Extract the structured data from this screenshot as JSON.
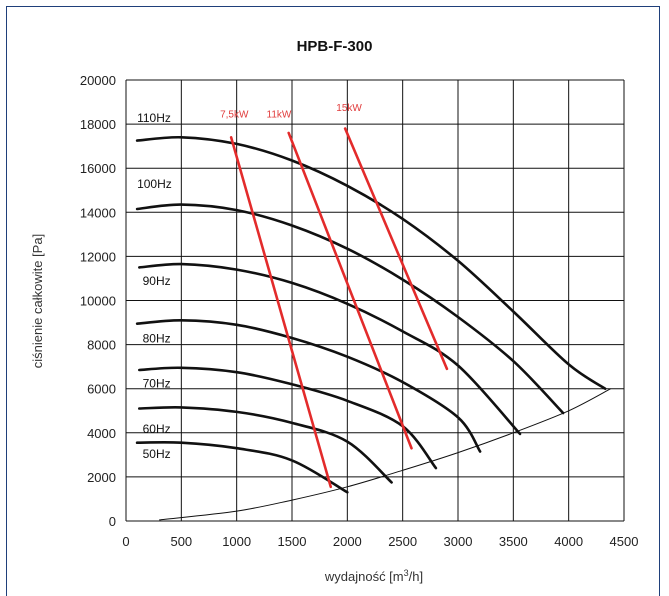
{
  "chart_data": {
    "type": "line",
    "title": "HPB-F-300",
    "xlabel_main": "wydajność [m",
    "xlabel_sup": "3",
    "xlabel_end": "/h]",
    "ylabel": "ciśnienie całkowite [Pa]",
    "xlim": [
      0,
      4500
    ],
    "ylim": [
      0,
      20000
    ],
    "x_ticks": [
      0,
      500,
      1000,
      1500,
      2000,
      2500,
      3000,
      3500,
      4000,
      4500
    ],
    "y_ticks": [
      0,
      2000,
      4000,
      6000,
      8000,
      10000,
      12000,
      14000,
      16000,
      18000,
      20000
    ],
    "grid": true,
    "colors": {
      "frequency_curves": "#111111",
      "power_lines": "#e32b2b",
      "system_curve": "#111111",
      "power_labels": "#e03c3c"
    },
    "frequency_curves": [
      {
        "label": "110Hz",
        "label_pos": [
          100,
          18100
        ],
        "points": [
          [
            100,
            17250
          ],
          [
            500,
            17400
          ],
          [
            1000,
            17100
          ],
          [
            1500,
            16350
          ],
          [
            2000,
            15200
          ],
          [
            2500,
            13700
          ],
          [
            3000,
            11800
          ],
          [
            3500,
            9500
          ],
          [
            4000,
            7100
          ],
          [
            4330,
            6000
          ]
        ]
      },
      {
        "label": "100Hz",
        "label_pos": [
          100,
          15100
        ],
        "points": [
          [
            100,
            14150
          ],
          [
            500,
            14350
          ],
          [
            1000,
            14100
          ],
          [
            1500,
            13400
          ],
          [
            2000,
            12350
          ],
          [
            2500,
            10950
          ],
          [
            3000,
            9250
          ],
          [
            3500,
            7250
          ],
          [
            3950,
            4900
          ]
        ]
      },
      {
        "label": "90Hz",
        "label_pos": [
          150,
          10700
        ],
        "points": [
          [
            120,
            11500
          ],
          [
            500,
            11650
          ],
          [
            1000,
            11400
          ],
          [
            1500,
            10800
          ],
          [
            2000,
            9850
          ],
          [
            2500,
            8600
          ],
          [
            3000,
            7050
          ],
          [
            3560,
            3950
          ]
        ]
      },
      {
        "label": "80Hz",
        "label_pos": [
          150,
          8100
        ],
        "points": [
          [
            100,
            8950
          ],
          [
            500,
            9100
          ],
          [
            1000,
            8900
          ],
          [
            1500,
            8300
          ],
          [
            2000,
            7450
          ],
          [
            2500,
            6300
          ],
          [
            3000,
            4700
          ],
          [
            3200,
            3150
          ]
        ]
      },
      {
        "label": "70Hz",
        "label_pos": [
          150,
          6050
        ],
        "points": [
          [
            120,
            6850
          ],
          [
            500,
            6950
          ],
          [
            1000,
            6750
          ],
          [
            1500,
            6200
          ],
          [
            2000,
            5450
          ],
          [
            2500,
            4300
          ],
          [
            2800,
            2400
          ]
        ]
      },
      {
        "label": "60Hz",
        "label_pos": [
          150,
          4000
        ],
        "points": [
          [
            120,
            5100
          ],
          [
            500,
            5150
          ],
          [
            1000,
            4950
          ],
          [
            1500,
            4450
          ],
          [
            2000,
            3600
          ],
          [
            2400,
            1750
          ]
        ]
      },
      {
        "label": "50Hz",
        "label_pos": [
          150,
          2850
        ],
        "points": [
          [
            100,
            3550
          ],
          [
            500,
            3550
          ],
          [
            1000,
            3300
          ],
          [
            1500,
            2750
          ],
          [
            2000,
            1300
          ]
        ]
      }
    ],
    "power_lines": [
      {
        "label": "7,5kW",
        "label_pos": [
          850,
          18300
        ],
        "points": [
          [
            950,
            17400
          ],
          [
            1850,
            1550
          ]
        ]
      },
      {
        "label": "11kW",
        "label_pos": [
          1270,
          18300
        ],
        "points": [
          [
            1470,
            17600
          ],
          [
            2580,
            3300
          ]
        ]
      },
      {
        "label": "15kW",
        "label_pos": [
          1900,
          18600
        ],
        "points": [
          [
            1980,
            17800
          ],
          [
            2900,
            6900
          ]
        ]
      }
    ],
    "system_curve": [
      [
        300,
        50
      ],
      [
        1000,
        450
      ],
      [
        1500,
        950
      ],
      [
        2000,
        1550
      ],
      [
        2500,
        2300
      ],
      [
        3000,
        3100
      ],
      [
        3500,
        4000
      ],
      [
        4000,
        5000
      ],
      [
        4380,
        6000
      ]
    ]
  }
}
